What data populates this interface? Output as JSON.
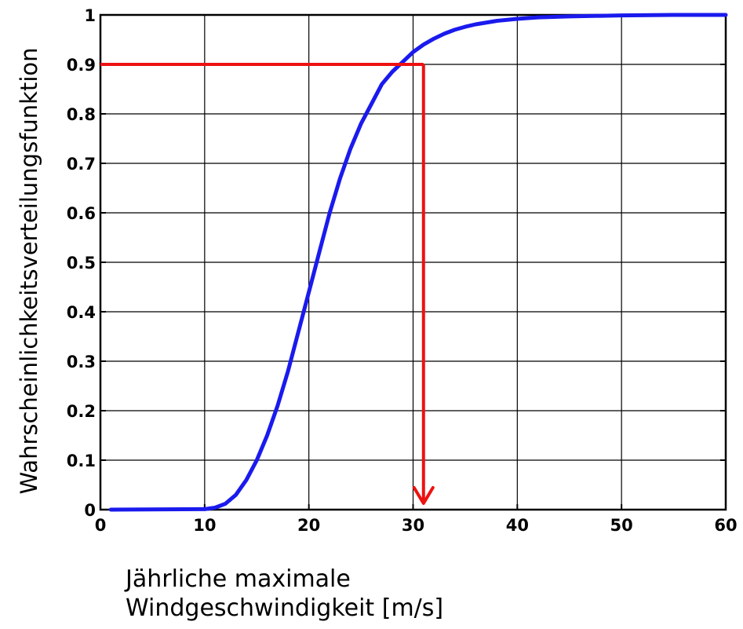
{
  "chart_data": {
    "type": "line",
    "title": "",
    "xlabel_lines": [
      "Jährliche maximale",
      "Windgeschwindigkeit [m/s]"
    ],
    "ylabel": "Wahrscheinlichkeitsverteilungsfunktion",
    "xlim": [
      0,
      60
    ],
    "ylim": [
      0,
      1
    ],
    "x_ticks": [
      0,
      10,
      20,
      30,
      40,
      50,
      60
    ],
    "y_ticks": [
      0,
      0.1,
      0.2,
      0.3,
      0.4,
      0.5,
      0.6,
      0.7,
      0.8,
      0.9,
      1
    ],
    "y_tick_labels": [
      "0",
      "0.1",
      "0.2",
      "0.3",
      "0.4",
      "0.5",
      "0.6",
      "0.7",
      "0.8",
      "0.9",
      "1"
    ],
    "grid": true,
    "series": [
      {
        "color": "#1a1aee",
        "x": [
          1,
          10,
          11,
          12,
          13,
          14,
          15,
          16,
          17,
          18,
          19,
          20,
          21,
          22,
          23,
          24,
          25,
          26,
          27,
          28,
          29,
          30,
          31,
          32,
          33,
          34,
          35,
          36,
          38,
          40,
          42,
          45,
          50,
          55,
          60
        ],
        "y": [
          0,
          0.001,
          0.004,
          0.012,
          0.03,
          0.06,
          0.1,
          0.15,
          0.21,
          0.28,
          0.36,
          0.44,
          0.52,
          0.6,
          0.67,
          0.73,
          0.78,
          0.82,
          0.86,
          0.885,
          0.905,
          0.925,
          0.94,
          0.952,
          0.962,
          0.97,
          0.976,
          0.981,
          0.988,
          0.992,
          0.995,
          0.997,
          0.999,
          1,
          1
        ]
      }
    ],
    "annotation": {
      "color": "#ee1111",
      "level_y": 0.9,
      "x": 31
    }
  }
}
